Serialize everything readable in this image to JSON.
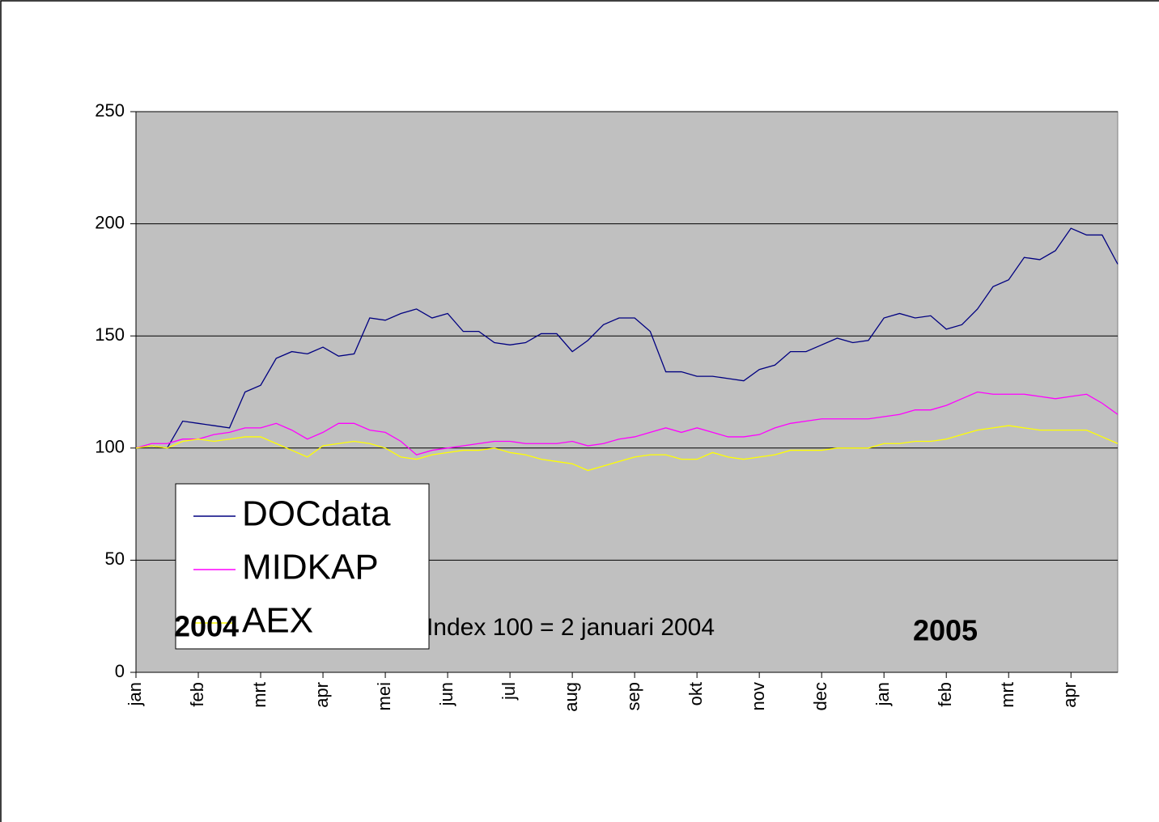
{
  "chart_data": {
    "type": "line",
    "categories": [
      "jan",
      null,
      null,
      null,
      "feb",
      null,
      null,
      null,
      "mrt",
      null,
      null,
      null,
      "apr",
      null,
      null,
      null,
      "mei",
      null,
      null,
      null,
      "jun",
      null,
      null,
      null,
      "jul",
      null,
      null,
      null,
      "aug",
      null,
      null,
      null,
      "sep",
      null,
      null,
      null,
      "okt",
      null,
      null,
      null,
      "nov",
      null,
      null,
      null,
      "dec",
      null,
      null,
      null,
      "jan",
      null,
      null,
      null,
      "feb",
      null,
      null,
      null,
      "mrt",
      null,
      null,
      null,
      "apr",
      null,
      null,
      null
    ],
    "series": [
      {
        "name": "DOCdata",
        "color": "#000080",
        "values": [
          100,
          101,
          100,
          112,
          111,
          110,
          109,
          125,
          128,
          140,
          143,
          142,
          145,
          141,
          142,
          158,
          157,
          160,
          162,
          158,
          160,
          152,
          152,
          147,
          146,
          147,
          151,
          151,
          143,
          148,
          155,
          158,
          158,
          152,
          134,
          134,
          132,
          132,
          131,
          130,
          135,
          137,
          143,
          143,
          146,
          149,
          147,
          148,
          158,
          160,
          158,
          159,
          153,
          155,
          162,
          172,
          175,
          185,
          184,
          188,
          198,
          195,
          195,
          182
        ]
      },
      {
        "name": "MIDKAP",
        "color": "#ff00ff",
        "values": [
          100,
          102,
          102,
          104,
          104,
          106,
          107,
          109,
          109,
          111,
          108,
          104,
          107,
          111,
          111,
          108,
          107,
          103,
          97,
          99,
          100,
          101,
          102,
          103,
          103,
          102,
          102,
          102,
          103,
          101,
          102,
          104,
          105,
          107,
          109,
          107,
          109,
          107,
          105,
          105,
          106,
          109,
          111,
          112,
          113,
          113,
          113,
          113,
          114,
          115,
          117,
          117,
          119,
          122,
          125,
          124,
          124,
          124,
          123,
          122,
          123,
          124,
          120,
          115
        ]
      },
      {
        "name": "AEX",
        "color": "#ffff00",
        "values": [
          100,
          101,
          100,
          103,
          104,
          103,
          104,
          105,
          105,
          102,
          99,
          96,
          101,
          102,
          103,
          102,
          100,
          96,
          95,
          97,
          98,
          99,
          99,
          100,
          98,
          97,
          95,
          94,
          93,
          90,
          92,
          94,
          96,
          97,
          97,
          95,
          95,
          98,
          96,
          95,
          96,
          97,
          99,
          99,
          99,
          100,
          100,
          100,
          102,
          102,
          103,
          103,
          104,
          106,
          108,
          109,
          110,
          109,
          108,
          108,
          108,
          108,
          105,
          102
        ]
      }
    ],
    "ylim": [
      0,
      250
    ],
    "yticks": [
      0,
      50,
      100,
      150,
      200,
      250
    ],
    "grid": true,
    "legend": "lower left",
    "annotations": [
      "2004",
      "Index 100 = 2 januari 2004",
      "2005"
    ]
  }
}
